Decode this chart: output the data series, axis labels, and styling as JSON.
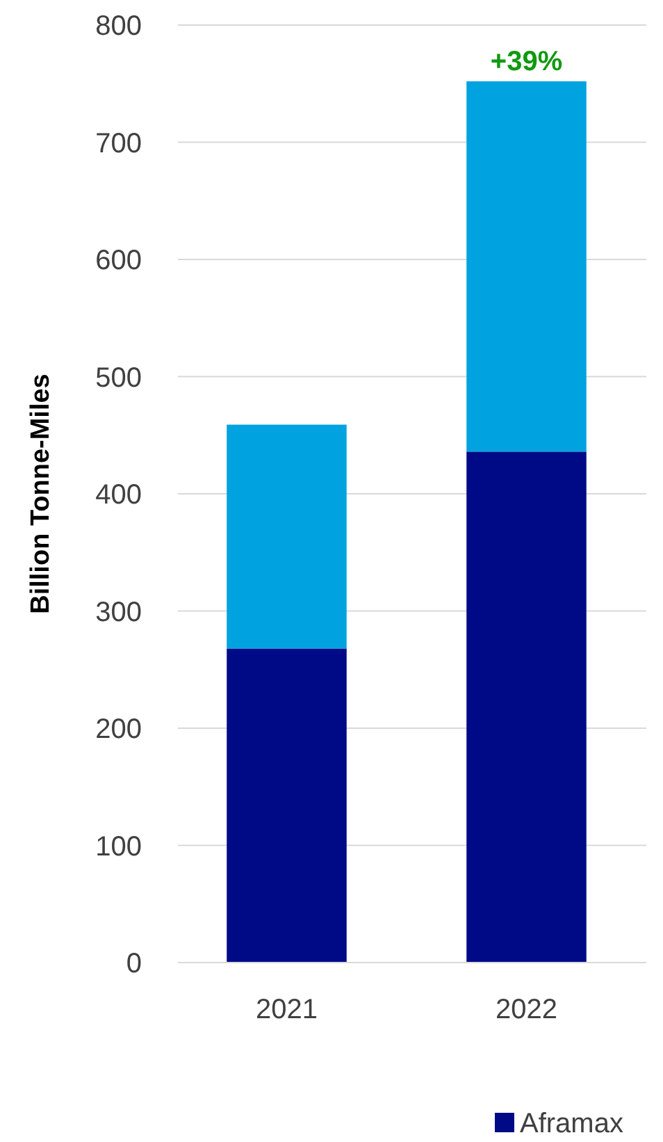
{
  "chart_data": {
    "type": "bar",
    "ylabel": "Billion Tonne-Miles",
    "categories": [
      "2021",
      "2022"
    ],
    "series": [
      {
        "name": "Aframax",
        "color": "#000a87",
        "values": [
          268,
          436
        ]
      },
      {
        "color": "#00a3e0",
        "values": [
          191,
          316
        ]
      }
    ],
    "stacked": true,
    "ylim": [
      0,
      800
    ],
    "yticks": [
      0,
      100,
      200,
      300,
      400,
      500,
      600,
      700,
      800
    ],
    "grid": "y",
    "legend": "bottom right",
    "annotations": [
      {
        "text": "+39%",
        "x": "2022",
        "y": 752
      }
    ]
  }
}
